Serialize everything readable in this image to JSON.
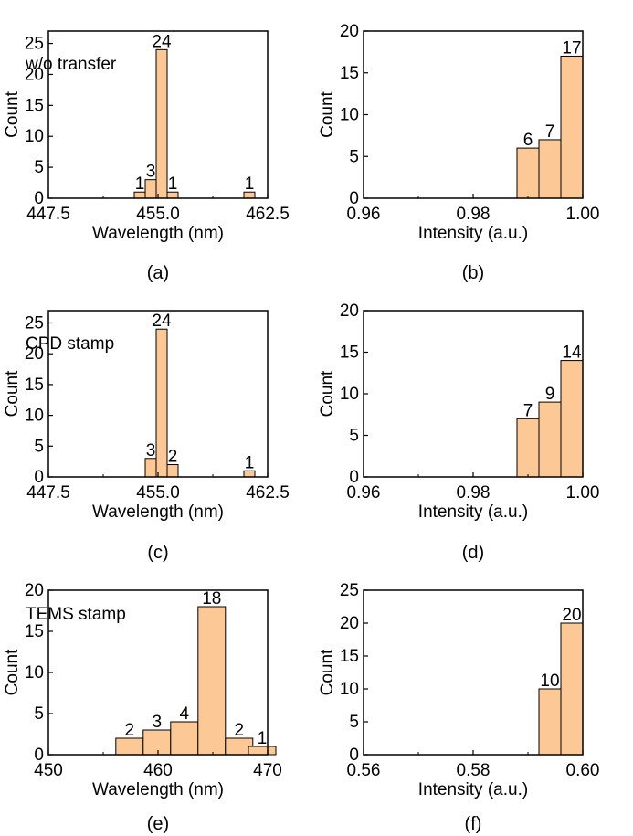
{
  "chart_data": [
    {
      "type": "bar",
      "panel": "(a)",
      "annotation": "w/o transfer",
      "xlabel": "Wavelength (nm)",
      "ylabel": "Count",
      "xlim": [
        447.5,
        462.5
      ],
      "ylim": [
        0,
        27
      ],
      "xticks": [
        "447.5",
        "455.0",
        "462.5"
      ],
      "yticks": [
        "0",
        "5",
        "10",
        "15",
        "20",
        "25"
      ],
      "bar_width": 0.75,
      "bars": [
        {
          "x": 453.75,
          "value": 1
        },
        {
          "x": 454.5,
          "value": 3
        },
        {
          "x": 455.25,
          "value": 24
        },
        {
          "x": 456.0,
          "value": 1
        },
        {
          "x": 461.25,
          "value": 1
        }
      ],
      "grid": false,
      "bar_color": "#fcc896"
    },
    {
      "type": "bar",
      "panel": "(b)",
      "annotation": "",
      "xlabel": "Intensity (a.u.)",
      "ylabel": "Count",
      "xlim": [
        0.96,
        1.0
      ],
      "ylim": [
        0,
        20
      ],
      "xticks": [
        "0.96",
        "0.98",
        "1.00"
      ],
      "yticks": [
        "0",
        "5",
        "10",
        "15",
        "20"
      ],
      "bar_width": 0.004,
      "bars": [
        {
          "x": 0.99,
          "value": 6
        },
        {
          "x": 0.994,
          "value": 7
        },
        {
          "x": 0.998,
          "value": 17
        }
      ],
      "grid": false,
      "bar_color": "#fcc896"
    },
    {
      "type": "bar",
      "panel": "(c)",
      "annotation": "CPD stamp",
      "xlabel": "Wavelength (nm)",
      "ylabel": "Count",
      "xlim": [
        447.5,
        462.5
      ],
      "ylim": [
        0,
        27
      ],
      "xticks": [
        "447.5",
        "455.0",
        "462.5"
      ],
      "yticks": [
        "0",
        "5",
        "10",
        "15",
        "20",
        "25"
      ],
      "bar_width": 0.75,
      "bars": [
        {
          "x": 454.5,
          "value": 3
        },
        {
          "x": 455.25,
          "value": 24
        },
        {
          "x": 456.0,
          "value": 2
        },
        {
          "x": 461.25,
          "value": 1
        }
      ],
      "grid": false,
      "bar_color": "#fcc896"
    },
    {
      "type": "bar",
      "panel": "(d)",
      "annotation": "",
      "xlabel": "Intensity (a.u.)",
      "ylabel": "Count",
      "xlim": [
        0.96,
        1.0
      ],
      "ylim": [
        0,
        20
      ],
      "xticks": [
        "0.96",
        "0.98",
        "1.00"
      ],
      "yticks": [
        "0",
        "5",
        "10",
        "15",
        "20"
      ],
      "bar_width": 0.004,
      "bars": [
        {
          "x": 0.99,
          "value": 7
        },
        {
          "x": 0.994,
          "value": 9
        },
        {
          "x": 0.998,
          "value": 14
        }
      ],
      "grid": false,
      "bar_color": "#fcc896"
    },
    {
      "type": "bar",
      "panel": "(e)",
      "annotation": "TEMS stamp",
      "xlabel": "Wavelength (nm)",
      "ylabel": "Count",
      "xlim": [
        450,
        470
      ],
      "ylim": [
        0,
        20
      ],
      "xticks": [
        "450",
        "460",
        "470"
      ],
      "yticks": [
        "0",
        "5",
        "10",
        "15",
        "20"
      ],
      "bar_width": 2.5,
      "bars": [
        {
          "x": 457.4,
          "value": 2
        },
        {
          "x": 459.9,
          "value": 3
        },
        {
          "x": 462.4,
          "value": 4
        },
        {
          "x": 464.9,
          "value": 18
        },
        {
          "x": 467.4,
          "value": 2
        },
        {
          "x": 469.5,
          "value": 1
        }
      ],
      "grid": false,
      "bar_color": "#fcc896"
    },
    {
      "type": "bar",
      "panel": "(f)",
      "annotation": "",
      "xlabel": "Intensity (a.u.)",
      "ylabel": "Count",
      "xlim": [
        0.56,
        0.6
      ],
      "ylim": [
        0,
        25
      ],
      "xticks": [
        "0.56",
        "0.58",
        "0.60"
      ],
      "yticks": [
        "0",
        "5",
        "10",
        "15",
        "20",
        "25"
      ],
      "bar_width": 0.004,
      "bars": [
        {
          "x": 0.594,
          "value": 10
        },
        {
          "x": 0.598,
          "value": 20
        }
      ],
      "grid": false,
      "bar_color": "#fcc896"
    }
  ]
}
